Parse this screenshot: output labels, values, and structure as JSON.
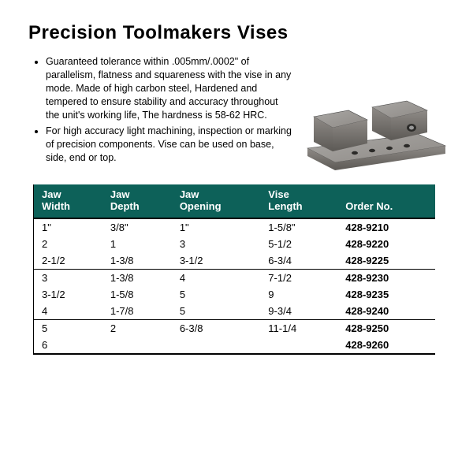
{
  "title": "Precision Toolmakers Vises",
  "bullets": [
    "Guaranteed tolerance within .005mm/.0002\" of parallelism, flatness and squareness with the vise in any mode. Made of high carbon steel, Hardened and tempered to ensure stability and accuracy throughout the unit's working life, The hardness is 58-62 HRC.",
    "For high accuracy light machining, inspection or marking of precision components. Vise can be used on base, side, end or top."
  ],
  "table": {
    "header_bg": "#0d6159",
    "header_fg": "#ffffff",
    "columns": [
      {
        "line1": "Jaw",
        "line2": "Width"
      },
      {
        "line1": "Jaw",
        "line2": "Depth"
      },
      {
        "line1": "Jaw",
        "line2": "Opening"
      },
      {
        "line1": "Vise",
        "line2": "Length"
      },
      {
        "line1": "",
        "line2": "Order No."
      }
    ],
    "rows": [
      {
        "cells": [
          "1\"",
          "3/8\"",
          "1\"",
          "1-5/8\"",
          "428-9210"
        ],
        "sep": "none"
      },
      {
        "cells": [
          "2",
          "1",
          "3",
          "5-1/2",
          "428-9220"
        ],
        "sep": "none"
      },
      {
        "cells": [
          "2-1/2",
          "1-3/8",
          "3-1/2",
          "6-3/4",
          "428-9225"
        ],
        "sep": "thin"
      },
      {
        "cells": [
          "3",
          "1-3/8",
          "4",
          "7-1/2",
          "428-9230"
        ],
        "sep": "none"
      },
      {
        "cells": [
          "3-1/2",
          "1-5/8",
          "5",
          "9",
          "428-9235"
        ],
        "sep": "none"
      },
      {
        "cells": [
          "4",
          "1-7/8",
          "5",
          "9-3/4",
          "428-9240"
        ],
        "sep": "thin"
      },
      {
        "cells": [
          "5",
          "2",
          "6-3/8",
          "11-1/4",
          "428-9250"
        ],
        "sep": "none"
      },
      {
        "cells": [
          "6",
          "",
          "",
          "",
          "428-9260"
        ],
        "sep": "thick"
      }
    ]
  },
  "image": {
    "base_color": "#a9a7a4",
    "mid_color": "#8e8a86",
    "dark_color": "#5c5955",
    "hole_color": "#2b2a28"
  }
}
